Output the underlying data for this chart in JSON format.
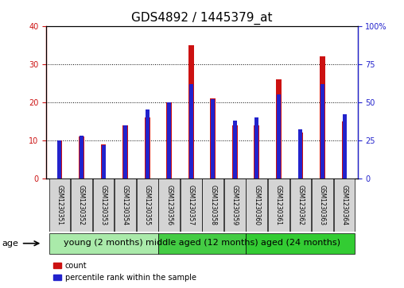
{
  "title": "GDS4892 / 1445379_at",
  "samples": [
    "GSM1230351",
    "GSM1230352",
    "GSM1230353",
    "GSM1230354",
    "GSM1230355",
    "GSM1230356",
    "GSM1230357",
    "GSM1230358",
    "GSM1230359",
    "GSM1230360",
    "GSM1230361",
    "GSM1230362",
    "GSM1230363",
    "GSM1230364"
  ],
  "counts": [
    10,
    11,
    9,
    14,
    16,
    20,
    35,
    21,
    14,
    14,
    26,
    12,
    32,
    15
  ],
  "percentiles": [
    25,
    28,
    22,
    35,
    45,
    50,
    62,
    52,
    38,
    40,
    55,
    32,
    62,
    42
  ],
  "count_color": "#cc1111",
  "percentile_color": "#2222cc",
  "ylim_left": [
    0,
    40
  ],
  "ylim_right": [
    0,
    100
  ],
  "yticks_left": [
    0,
    10,
    20,
    30,
    40
  ],
  "yticks_right": [
    0,
    25,
    50,
    75,
    100
  ],
  "groups": [
    {
      "label": "young (2 months)",
      "start": 0,
      "end": 5,
      "color": "#aaeaaa"
    },
    {
      "label": "middle aged (12 months)",
      "start": 5,
      "end": 9,
      "color": "#44cc44"
    },
    {
      "label": "aged (24 months)",
      "start": 9,
      "end": 14,
      "color": "#33cc33"
    }
  ],
  "age_label": "age",
  "legend_count": "count",
  "legend_percentile": "percentile rank within the sample",
  "red_bar_width": 0.25,
  "blue_bar_width": 0.18,
  "title_fontsize": 11,
  "tick_fontsize": 7,
  "group_fontsize": 8,
  "sample_fontsize": 5.5,
  "box_facecolor": "#d4d4d4"
}
